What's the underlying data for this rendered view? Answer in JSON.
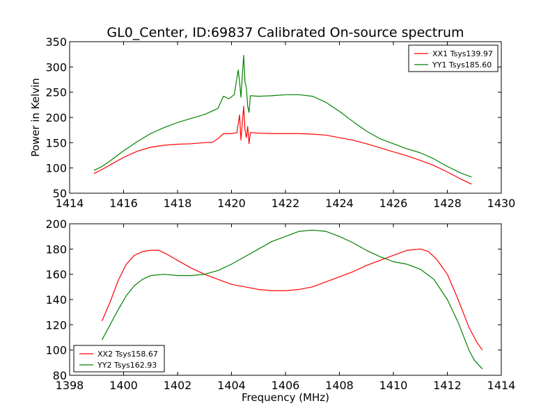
{
  "figure": {
    "title": "GL0_Center, ID:69837 Calibrated On-source spectrum"
  },
  "chart_data": [
    {
      "type": "line",
      "panel": "top",
      "title": "GL0_Center, ID:69837 Calibrated On-source spectrum",
      "xlabel": "",
      "ylabel": "Power in Kelvin",
      "xlim": [
        1414,
        1430
      ],
      "ylim": [
        50,
        350
      ],
      "xticks": [
        1414,
        1416,
        1418,
        1420,
        1422,
        1424,
        1426,
        1428,
        1430
      ],
      "yticks": [
        50,
        100,
        150,
        200,
        250,
        300,
        350
      ],
      "legend_position": "top-right",
      "series": [
        {
          "name": "XX1 Tsys139.97",
          "color": "#ff0000",
          "points": [
            [
              1414.9,
              89
            ],
            [
              1415.2,
              97
            ],
            [
              1415.5,
              106
            ],
            [
              1416.0,
              121
            ],
            [
              1416.5,
              133
            ],
            [
              1417.0,
              141
            ],
            [
              1417.5,
              145
            ],
            [
              1418.0,
              147
            ],
            [
              1418.5,
              148
            ],
            [
              1419.0,
              150
            ],
            [
              1419.3,
              151
            ],
            [
              1419.5,
              158
            ],
            [
              1419.7,
              168
            ],
            [
              1420.0,
              168
            ],
            [
              1420.2,
              170
            ],
            [
              1420.3,
              205
            ],
            [
              1420.35,
              155
            ],
            [
              1420.45,
              222
            ],
            [
              1420.5,
              175
            ],
            [
              1420.55,
              160
            ],
            [
              1420.6,
              182
            ],
            [
              1420.65,
              148
            ],
            [
              1420.7,
              170
            ],
            [
              1421.0,
              169
            ],
            [
              1421.5,
              168
            ],
            [
              1422.0,
              168
            ],
            [
              1422.5,
              168
            ],
            [
              1423.0,
              167
            ],
            [
              1423.5,
              165
            ],
            [
              1424.0,
              160
            ],
            [
              1424.5,
              155
            ],
            [
              1425.0,
              148
            ],
            [
              1425.5,
              140
            ],
            [
              1426.0,
              132
            ],
            [
              1426.5,
              124
            ],
            [
              1427.0,
              115
            ],
            [
              1427.5,
              105
            ],
            [
              1428.0,
              92
            ],
            [
              1428.5,
              78
            ],
            [
              1428.9,
              68
            ]
          ]
        },
        {
          "name": "YY1 Tsys185.60",
          "color": "#008000",
          "points": [
            [
              1414.9,
              95
            ],
            [
              1415.2,
              103
            ],
            [
              1415.5,
              114
            ],
            [
              1416.0,
              134
            ],
            [
              1416.5,
              152
            ],
            [
              1417.0,
              168
            ],
            [
              1417.5,
              180
            ],
            [
              1418.0,
              190
            ],
            [
              1418.5,
              198
            ],
            [
              1419.0,
              206
            ],
            [
              1419.3,
              213
            ],
            [
              1419.5,
              218
            ],
            [
              1419.7,
              242
            ],
            [
              1419.9,
              237
            ],
            [
              1420.1,
              245
            ],
            [
              1420.25,
              294
            ],
            [
              1420.3,
              270
            ],
            [
              1420.35,
              240
            ],
            [
              1420.45,
              323
            ],
            [
              1420.5,
              270
            ],
            [
              1420.55,
              260
            ],
            [
              1420.6,
              222
            ],
            [
              1420.65,
              210
            ],
            [
              1420.7,
              243
            ],
            [
              1421.0,
              242
            ],
            [
              1421.5,
              243
            ],
            [
              1422.0,
              245
            ],
            [
              1422.5,
              245
            ],
            [
              1423.0,
              242
            ],
            [
              1423.5,
              230
            ],
            [
              1424.0,
              212
            ],
            [
              1424.5,
              192
            ],
            [
              1425.0,
              173
            ],
            [
              1425.5,
              158
            ],
            [
              1426.0,
              148
            ],
            [
              1426.5,
              138
            ],
            [
              1427.0,
              130
            ],
            [
              1427.5,
              118
            ],
            [
              1428.0,
              103
            ],
            [
              1428.5,
              90
            ],
            [
              1428.9,
              82
            ]
          ]
        }
      ]
    },
    {
      "type": "line",
      "panel": "bottom",
      "title": "",
      "xlabel": "Frequency (MHz)",
      "ylabel": "",
      "xlim": [
        1398,
        1414
      ],
      "ylim": [
        80,
        200
      ],
      "xticks": [
        1398,
        1400,
        1402,
        1404,
        1406,
        1408,
        1410,
        1412,
        1414
      ],
      "yticks": [
        80,
        100,
        120,
        140,
        160,
        180,
        200
      ],
      "legend_position": "bottom-left",
      "series": [
        {
          "name": "XX2 Tsys158.67",
          "color": "#ff0000",
          "points": [
            [
              1399.2,
              123
            ],
            [
              1399.5,
              138
            ],
            [
              1399.8,
              155
            ],
            [
              1400.1,
              168
            ],
            [
              1400.4,
              175
            ],
            [
              1400.7,
              178
            ],
            [
              1401.0,
              179
            ],
            [
              1401.3,
              179
            ],
            [
              1401.6,
              176
            ],
            [
              1402.0,
              171
            ],
            [
              1402.5,
              165
            ],
            [
              1403.0,
              160
            ],
            [
              1403.5,
              156
            ],
            [
              1404.0,
              152
            ],
            [
              1404.5,
              150
            ],
            [
              1405.0,
              148
            ],
            [
              1405.5,
              147
            ],
            [
              1406.0,
              147
            ],
            [
              1406.5,
              148
            ],
            [
              1407.0,
              150
            ],
            [
              1407.5,
              154
            ],
            [
              1408.0,
              158
            ],
            [
              1408.5,
              162
            ],
            [
              1409.0,
              167
            ],
            [
              1409.5,
              171
            ],
            [
              1410.0,
              175
            ],
            [
              1410.5,
              179
            ],
            [
              1411.0,
              180
            ],
            [
              1411.3,
              178
            ],
            [
              1411.6,
              172
            ],
            [
              1412.0,
              160
            ],
            [
              1412.4,
              140
            ],
            [
              1412.8,
              118
            ],
            [
              1413.1,
              106
            ],
            [
              1413.3,
              100
            ]
          ]
        },
        {
          "name": "YY2 Tsys162.93",
          "color": "#008000",
          "points": [
            [
              1399.2,
              108
            ],
            [
              1399.5,
              120
            ],
            [
              1399.8,
              132
            ],
            [
              1400.1,
              143
            ],
            [
              1400.4,
              151
            ],
            [
              1400.7,
              156
            ],
            [
              1401.0,
              159
            ],
            [
              1401.5,
              160
            ],
            [
              1402.0,
              159
            ],
            [
              1402.5,
              159
            ],
            [
              1403.0,
              160
            ],
            [
              1403.5,
              163
            ],
            [
              1404.0,
              168
            ],
            [
              1404.5,
              174
            ],
            [
              1405.0,
              180
            ],
            [
              1405.5,
              186
            ],
            [
              1406.0,
              190
            ],
            [
              1406.5,
              194
            ],
            [
              1407.0,
              195
            ],
            [
              1407.5,
              194
            ],
            [
              1408.0,
              190
            ],
            [
              1408.5,
              185
            ],
            [
              1409.0,
              179
            ],
            [
              1409.5,
              174
            ],
            [
              1410.0,
              170
            ],
            [
              1410.5,
              168
            ],
            [
              1411.0,
              164
            ],
            [
              1411.5,
              156
            ],
            [
              1412.0,
              140
            ],
            [
              1412.4,
              122
            ],
            [
              1412.8,
              100
            ],
            [
              1413.0,
              92
            ],
            [
              1413.3,
              85
            ]
          ]
        }
      ]
    }
  ]
}
